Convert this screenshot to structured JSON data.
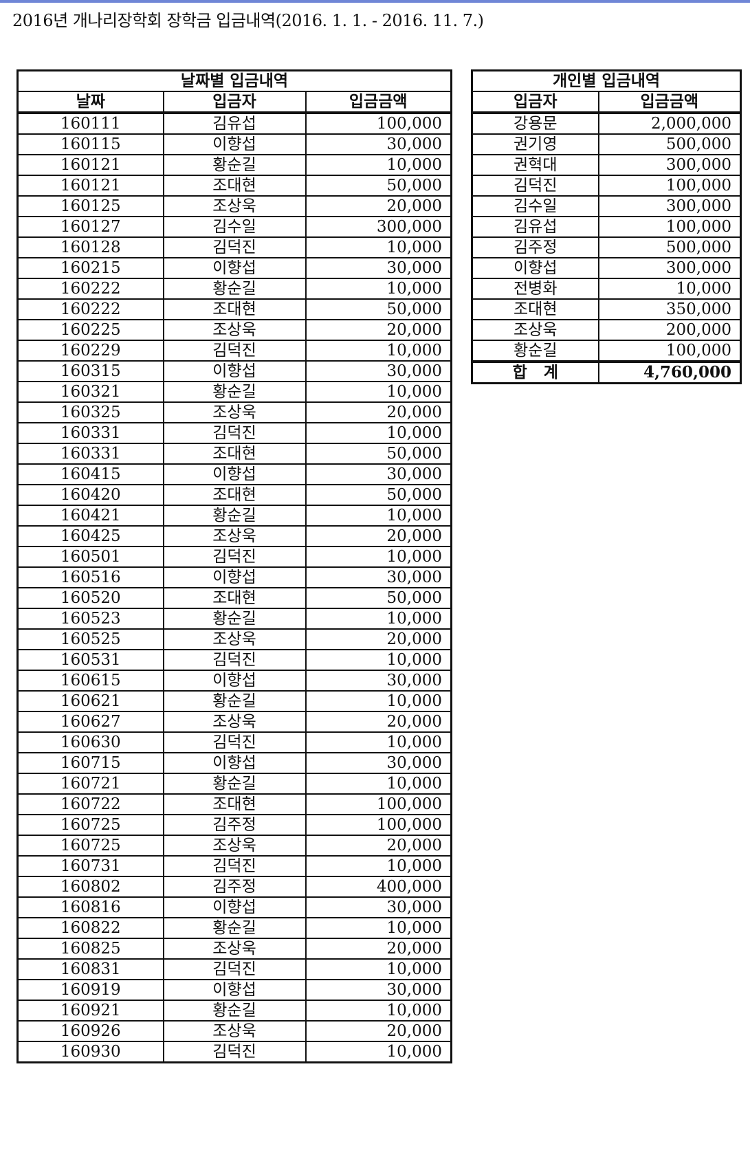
{
  "title": "2016년 개나리장학회 장학금 입금내역(2016. 1. 1. - 2016. 11. 7.)",
  "by_date": {
    "title": "날짜별 입금내역",
    "columns": [
      "날짜",
      "입금자",
      "입금금액"
    ],
    "rows": [
      [
        "160111",
        "김유섭",
        "100,000"
      ],
      [
        "160115",
        "이향섭",
        "30,000"
      ],
      [
        "160121",
        "황순길",
        "10,000"
      ],
      [
        "160121",
        "조대현",
        "50,000"
      ],
      [
        "160125",
        "조상욱",
        "20,000"
      ],
      [
        "160127",
        "김수일",
        "300,000"
      ],
      [
        "160128",
        "김덕진",
        "10,000"
      ],
      [
        "160215",
        "이향섭",
        "30,000"
      ],
      [
        "160222",
        "황순길",
        "10,000"
      ],
      [
        "160222",
        "조대현",
        "50,000"
      ],
      [
        "160225",
        "조상욱",
        "20,000"
      ],
      [
        "160229",
        "김덕진",
        "10,000"
      ],
      [
        "160315",
        "이향섭",
        "30,000"
      ],
      [
        "160321",
        "황순길",
        "10,000"
      ],
      [
        "160325",
        "조상욱",
        "20,000"
      ],
      [
        "160331",
        "김덕진",
        "10,000"
      ],
      [
        "160331",
        "조대현",
        "50,000"
      ],
      [
        "160415",
        "이향섭",
        "30,000"
      ],
      [
        "160420",
        "조대현",
        "50,000"
      ],
      [
        "160421",
        "황순길",
        "10,000"
      ],
      [
        "160425",
        "조상욱",
        "20,000"
      ],
      [
        "160501",
        "김덕진",
        "10,000"
      ],
      [
        "160516",
        "이향섭",
        "30,000"
      ],
      [
        "160520",
        "조대현",
        "50,000"
      ],
      [
        "160523",
        "황순길",
        "10,000"
      ],
      [
        "160525",
        "조상욱",
        "20,000"
      ],
      [
        "160531",
        "김덕진",
        "10,000"
      ],
      [
        "160615",
        "이향섭",
        "30,000"
      ],
      [
        "160621",
        "황순길",
        "10,000"
      ],
      [
        "160627",
        "조상욱",
        "20,000"
      ],
      [
        "160630",
        "김덕진",
        "10,000"
      ],
      [
        "160715",
        "이향섭",
        "30,000"
      ],
      [
        "160721",
        "황순길",
        "10,000"
      ],
      [
        "160722",
        "조대현",
        "100,000"
      ],
      [
        "160725",
        "김주정",
        "100,000"
      ],
      [
        "160725",
        "조상욱",
        "20,000"
      ],
      [
        "160731",
        "김덕진",
        "10,000"
      ],
      [
        "160802",
        "김주정",
        "400,000"
      ],
      [
        "160816",
        "이향섭",
        "30,000"
      ],
      [
        "160822",
        "황순길",
        "10,000"
      ],
      [
        "160825",
        "조상욱",
        "20,000"
      ],
      [
        "160831",
        "김덕진",
        "10,000"
      ],
      [
        "160919",
        "이향섭",
        "30,000"
      ],
      [
        "160921",
        "황순길",
        "10,000"
      ],
      [
        "160926",
        "조상욱",
        "20,000"
      ],
      [
        "160930",
        "김덕진",
        "10,000"
      ]
    ]
  },
  "by_person": {
    "title": "개인별 입금내역",
    "columns": [
      "입금자",
      "입금금액"
    ],
    "rows": [
      [
        "강용문",
        "2,000,000"
      ],
      [
        "권기영",
        "500,000"
      ],
      [
        "권혁대",
        "300,000"
      ],
      [
        "김덕진",
        "100,000"
      ],
      [
        "김수일",
        "300,000"
      ],
      [
        "김유섭",
        "100,000"
      ],
      [
        "김주정",
        "500,000"
      ],
      [
        "이향섭",
        "300,000"
      ],
      [
        "전병화",
        "10,000"
      ],
      [
        "조대현",
        "350,000"
      ],
      [
        "조상욱",
        "200,000"
      ],
      [
        "황순길",
        "100,000"
      ]
    ],
    "total_label": "합   계",
    "total_value": "4,760,000"
  }
}
